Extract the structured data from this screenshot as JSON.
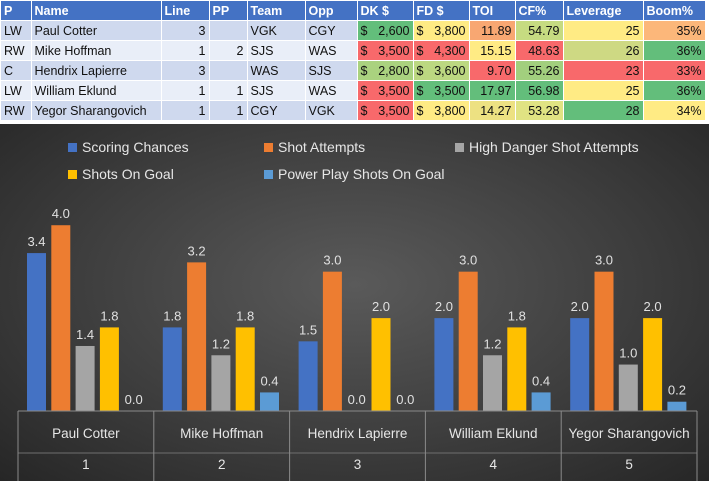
{
  "table": {
    "headers": [
      "P",
      "Name",
      "Line",
      "PP",
      "Team",
      "Opp",
      "DK $",
      "FD $",
      "TOI",
      "CF%",
      "Leverage",
      "Boom%"
    ],
    "rows": [
      {
        "pos": "LW",
        "name": "Paul Cotter",
        "line": "3",
        "pp": "",
        "team": "VGK",
        "opp": "CGY",
        "dk": "$2,600",
        "fd": "$3,800",
        "toi": "11.89",
        "cf": "54.79",
        "leverage": "25",
        "boom": "35%"
      },
      {
        "pos": "RW",
        "name": "Mike Hoffman",
        "line": "1",
        "pp": "2",
        "team": "SJS",
        "opp": "WAS",
        "dk": "$3,500",
        "fd": "$4,300",
        "toi": "15.15",
        "cf": "48.63",
        "leverage": "26",
        "boom": "36%"
      },
      {
        "pos": "C",
        "name": "Hendrix Lapierre",
        "line": "3",
        "pp": "",
        "team": "WAS",
        "opp": "SJS",
        "dk": "$2,800",
        "fd": "$3,600",
        "toi": "9.70",
        "cf": "55.26",
        "leverage": "23",
        "boom": "33%"
      },
      {
        "pos": "LW",
        "name": "William Eklund",
        "line": "1",
        "pp": "1",
        "team": "SJS",
        "opp": "WAS",
        "dk": "$3,500",
        "fd": "$3,500",
        "toi": "17.97",
        "cf": "56.98",
        "leverage": "25",
        "boom": "36%"
      },
      {
        "pos": "RW",
        "name": "Yegor Sharangovich",
        "line": "1",
        "pp": "1",
        "team": "CGY",
        "opp": "VGK",
        "dk": "$3,500",
        "fd": "$3,800",
        "toi": "14.27",
        "cf": "53.28",
        "leverage": "28",
        "boom": "34%"
      }
    ],
    "cell_colors": [
      {
        "dk": "#63be7b",
        "fd": "#ffeb84",
        "toi": "#f8a772",
        "cf": "#c6db81",
        "leverage": "#ffeb84",
        "boom": "#fcb77a"
      },
      {
        "dk": "#f8696b",
        "fd": "#f8696b",
        "toi": "#ffeb84",
        "cf": "#f8696b",
        "leverage": "#ced983",
        "boom": "#63be7b"
      },
      {
        "dk": "#aad27f",
        "fd": "#bcd881",
        "toi": "#f8696b",
        "cf": "#a2cf7e",
        "leverage": "#f8696b",
        "boom": "#f8696b"
      },
      {
        "dk": "#f8696b",
        "fd": "#63be7b",
        "toi": "#63be7b",
        "cf": "#63be7b",
        "leverage": "#ffeb84",
        "boom": "#63be7b"
      },
      {
        "dk": "#f8696b",
        "fd": "#ffeb84",
        "toi": "#ede182",
        "cf": "#e0e383",
        "leverage": "#63be7b",
        "boom": "#ffeb84"
      }
    ]
  },
  "chart_data": {
    "type": "bar",
    "categories": [
      "Paul Cotter",
      "Mike Hoffman",
      "Hendrix Lapierre",
      "William Eklund",
      "Yegor Sharangovich"
    ],
    "category_numbers": [
      "1",
      "2",
      "3",
      "4",
      "5"
    ],
    "series": [
      {
        "name": "Scoring Chances",
        "color": "#4472c4",
        "values": [
          3.4,
          1.8,
          1.5,
          2.0,
          2.0
        ],
        "labels": [
          "3.4",
          "1.8",
          "1.5",
          "2.0",
          "2.0"
        ]
      },
      {
        "name": "Shot Attempts",
        "color": "#ed7d31",
        "values": [
          4.0,
          3.2,
          3.0,
          3.0,
          3.0
        ],
        "labels": [
          "4.0",
          "3.2",
          "3.0",
          "3.0",
          "3.0"
        ]
      },
      {
        "name": "High Danger Shot Attempts",
        "color": "#a5a5a5",
        "values": [
          1.4,
          1.2,
          0.0,
          1.2,
          1.0
        ],
        "labels": [
          "1.4",
          "1.2",
          "0.0",
          "1.2",
          "1.0"
        ]
      },
      {
        "name": "Shots On Goal",
        "color": "#ffc000",
        "values": [
          1.8,
          1.8,
          2.0,
          1.8,
          2.0
        ],
        "labels": [
          "1.8",
          "1.8",
          "2.0",
          "1.8",
          "2.0"
        ]
      },
      {
        "name": "Power Play Shots On Goal",
        "color": "#5b9bd5",
        "values": [
          0.0,
          0.4,
          0.0,
          0.4,
          0.2
        ],
        "labels": [
          "0.0",
          "0.4",
          "0.0",
          "0.4",
          "0.2"
        ]
      }
    ],
    "ylim": [
      0,
      4.5
    ],
    "legend": "top",
    "grid": false,
    "title": ""
  }
}
